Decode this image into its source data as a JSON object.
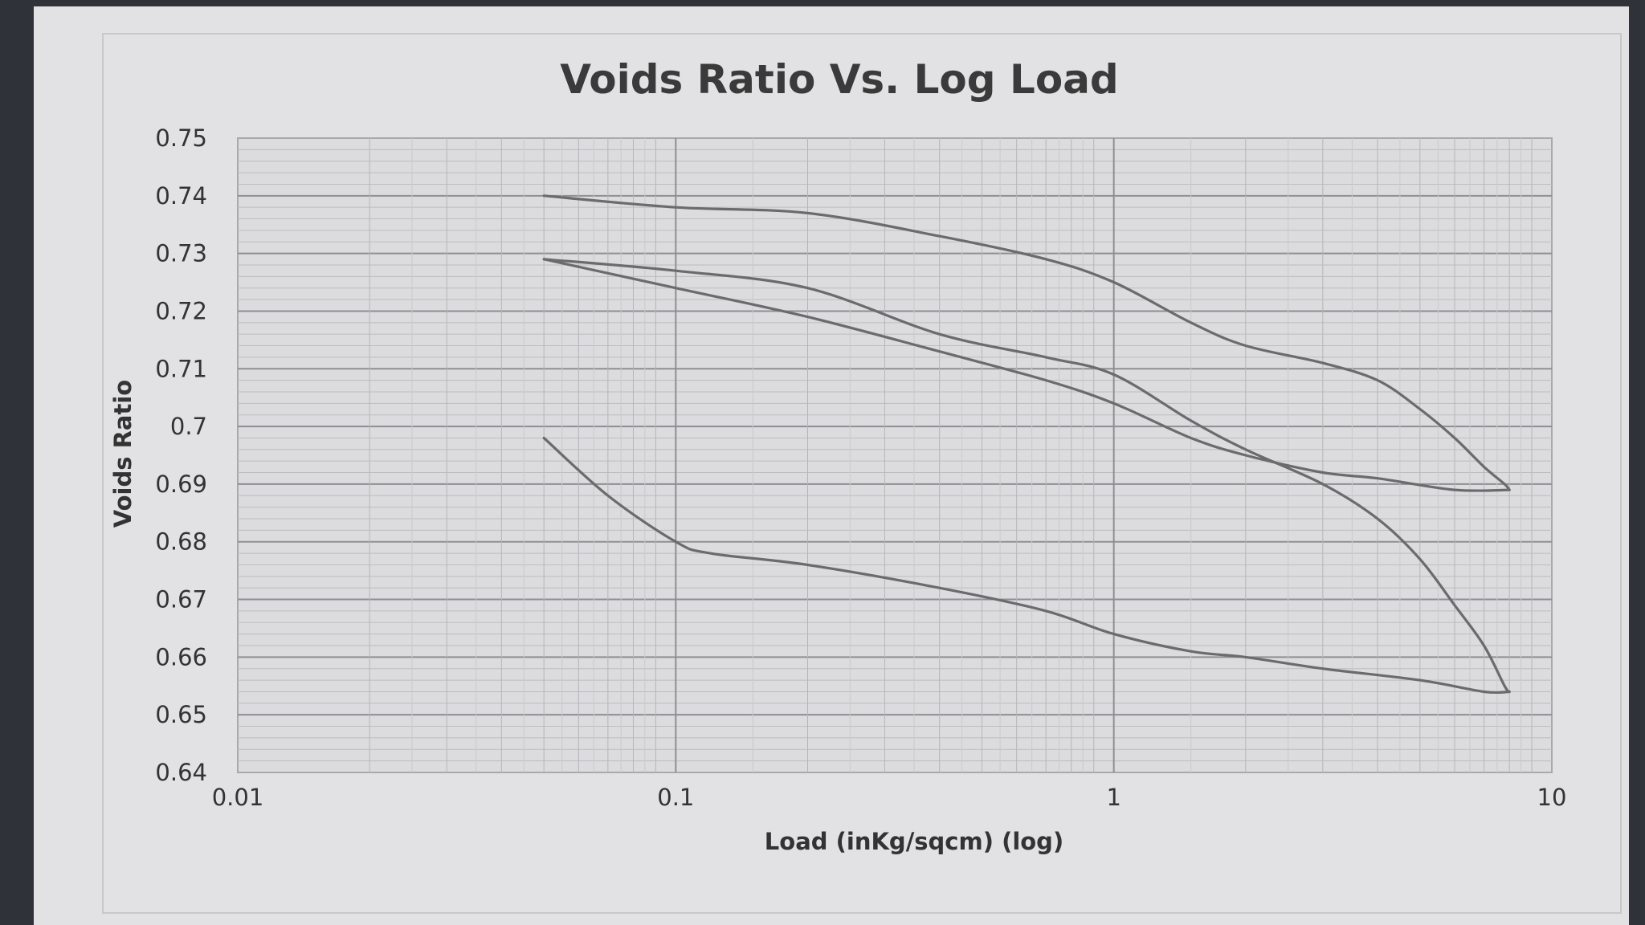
{
  "chart_data": {
    "type": "line",
    "title": "Voids Ratio Vs. Log Load",
    "xlabel": "Load (inKg/sqcm) (log)",
    "ylabel": "Voids Ratio",
    "xscale": "log",
    "xlim": [
      0.01,
      10
    ],
    "ylim": [
      0.64,
      0.75
    ],
    "xticks": [
      "0.01",
      "0.1",
      "1",
      "10"
    ],
    "yticks": [
      "0.75",
      "0.74",
      "0.73",
      "0.72",
      "0.71",
      "0.7",
      "0.69",
      "0.68",
      "0.67",
      "0.66",
      "0.65",
      "0.64"
    ],
    "grid": true,
    "legend": "none",
    "line_color": "#6b6b6e",
    "series": [
      {
        "x": [
          0.05,
          0.1,
          0.2,
          0.4,
          0.7,
          1.0,
          1.5,
          2.0,
          3.0,
          4.0,
          5.0,
          6.0,
          7.0,
          7.8,
          8.0
        ],
        "y": [
          0.74,
          0.738,
          0.737,
          0.733,
          0.729,
          0.725,
          0.718,
          0.714,
          0.711,
          0.708,
          0.703,
          0.698,
          0.693,
          0.69,
          0.689
        ]
      },
      {
        "x": [
          8.0,
          6.0,
          4.0,
          3.0,
          2.0,
          1.5,
          1.0,
          0.7,
          0.4,
          0.2,
          0.1,
          0.05
        ],
        "y": [
          0.689,
          0.689,
          0.691,
          0.692,
          0.695,
          0.698,
          0.704,
          0.708,
          0.713,
          0.719,
          0.724,
          0.729
        ]
      },
      {
        "x": [
          0.05,
          0.1,
          0.2,
          0.4,
          0.7,
          1.0,
          1.5,
          2.0,
          3.0,
          4.0,
          5.0,
          6.0,
          7.0,
          7.8,
          8.0
        ],
        "y": [
          0.729,
          0.727,
          0.724,
          0.716,
          0.712,
          0.709,
          0.701,
          0.696,
          0.69,
          0.684,
          0.677,
          0.669,
          0.662,
          0.655,
          0.654
        ]
      },
      {
        "x": [
          8.0,
          7.0,
          5.0,
          3.0,
          2.0,
          1.5,
          1.0,
          0.7,
          0.4,
          0.2,
          0.12,
          0.1,
          0.07,
          0.05
        ],
        "y": [
          0.654,
          0.654,
          0.656,
          0.658,
          0.66,
          0.661,
          0.664,
          0.668,
          0.672,
          0.676,
          0.678,
          0.68,
          0.688,
          0.698
        ]
      }
    ]
  }
}
